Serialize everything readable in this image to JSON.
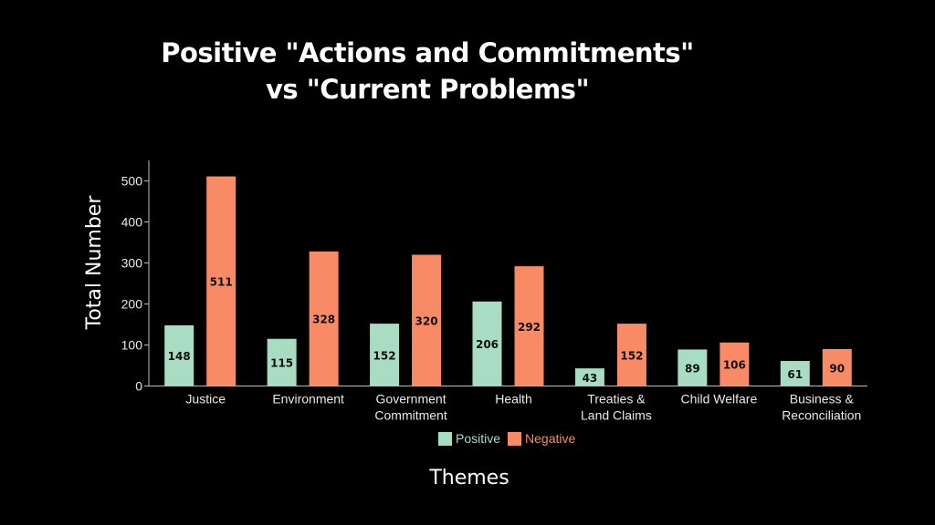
{
  "chart_data": {
    "type": "bar",
    "title_lines": [
      "Positive \"Actions and Commitments\"",
      "vs \"Current Problems\""
    ],
    "xlabel": "Themes",
    "ylabel": "Total Number",
    "ylim": [
      0,
      550
    ],
    "yticks": [
      0,
      100,
      200,
      300,
      400,
      500
    ],
    "categories": [
      [
        "Justice"
      ],
      [
        "Environment"
      ],
      [
        "Government",
        "Commitment"
      ],
      [
        "Health"
      ],
      [
        "Treaties &",
        "Land Claims"
      ],
      [
        "Child Welfare"
      ],
      [
        "Business &",
        "Reconciliation"
      ]
    ],
    "series": [
      {
        "name": "Positive",
        "color": "#a8dcc3",
        "values": [
          148,
          115,
          152,
          206,
          43,
          89,
          61
        ]
      },
      {
        "name": "Negative",
        "color": "#f98a66",
        "values": [
          511,
          328,
          320,
          292,
          152,
          106,
          90
        ]
      }
    ],
    "legend_position": "bottom-center"
  }
}
